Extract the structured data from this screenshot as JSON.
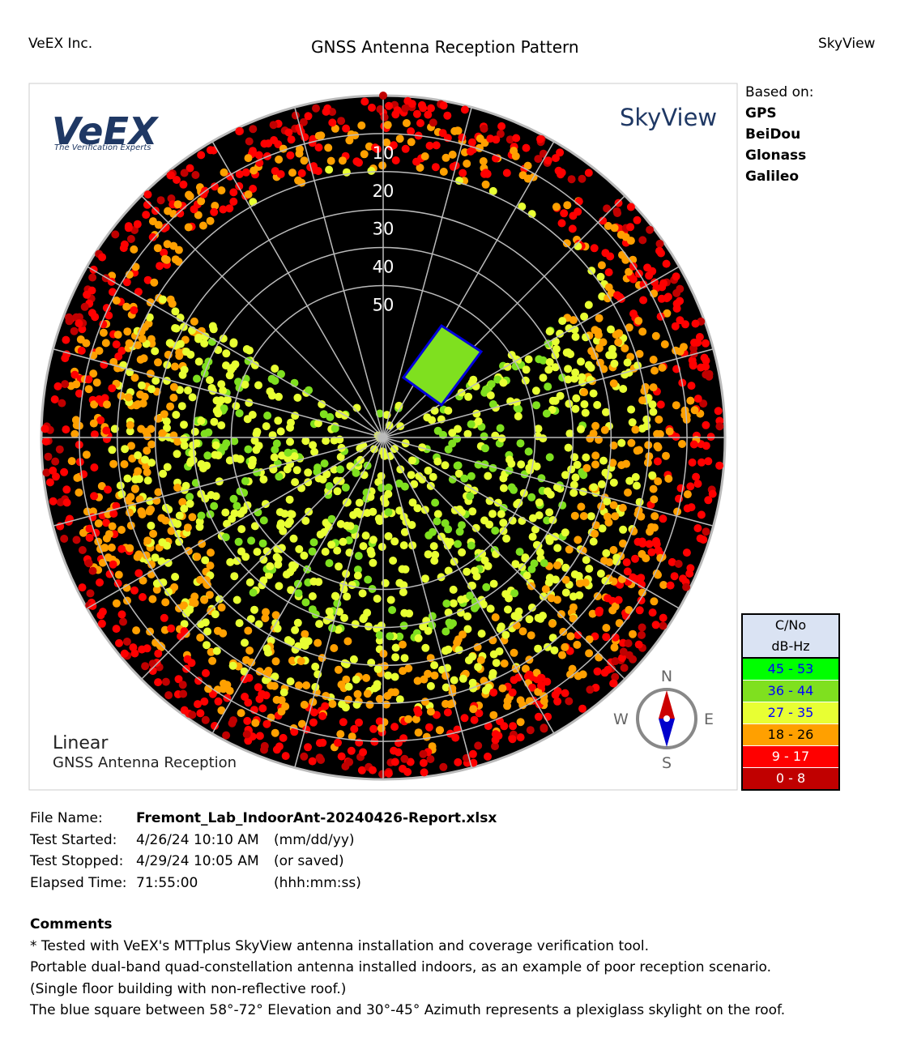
{
  "header": {
    "left": "VeEX Inc.",
    "title": "GNSS Antenna Reception Pattern",
    "right": "SkyView"
  },
  "sky_plot": {
    "logo": "VeEX",
    "logo_tagline": "The Verification Experts",
    "brand": "SkyView",
    "elevation_ticks": [
      10,
      20,
      30,
      40,
      50
    ],
    "scale": "Linear",
    "caption": "GNSS Antenna Reception",
    "compass": {
      "n": "N",
      "e": "E",
      "s": "S",
      "w": "W"
    }
  },
  "based_on": {
    "title": "Based on:",
    "items": [
      "GPS",
      "BeiDou",
      "Glonass",
      "Galileo"
    ]
  },
  "legend": {
    "title": "C/No",
    "unit": "dB-Hz",
    "rows": [
      {
        "label": "45 - 53",
        "color": "#00ff00",
        "text_color": "#0000ff"
      },
      {
        "label": "36 - 44",
        "color": "#7fe01f",
        "text_color": "#0000ff"
      },
      {
        "label": "27 - 35",
        "color": "#e8ff33",
        "text_color": "#0000ff"
      },
      {
        "label": "18 - 26",
        "color": "#ffa000",
        "text_color": "#000000"
      },
      {
        "label": "9 - 17",
        "color": "#ff0000",
        "text_color": "#ffffff"
      },
      {
        "label": "0 - 8",
        "color": "#c00000",
        "text_color": "#ffffff"
      }
    ]
  },
  "file_info": [
    [
      "File Name:",
      "Fremont_Lab_IndoorAnt-20240426-Report.xlsx",
      ""
    ],
    [
      "Test Started:",
      "4/26/24 10:10 AM",
      "(mm/dd/yy)"
    ],
    [
      "Test Stopped:",
      "4/29/24 10:05 AM",
      "(or saved)"
    ],
    [
      "Elapsed Time:",
      "71:55:00",
      "(hhh:mm:ss)"
    ]
  ],
  "comments": {
    "title": "Comments",
    "lines": [
      "* Tested with VeEX's MTTplus SkyView antenna installation and coverage verification tool.",
      "Portable dual-band quad-constellation antenna installed indoors, as an example of poor reception scenario.",
      "(Single floor building with non-reflective roof.)",
      "The blue square between 58°-72° Elevation and 30°-45° Azimuth represents a plexiglass skylight on the roof."
    ]
  }
}
